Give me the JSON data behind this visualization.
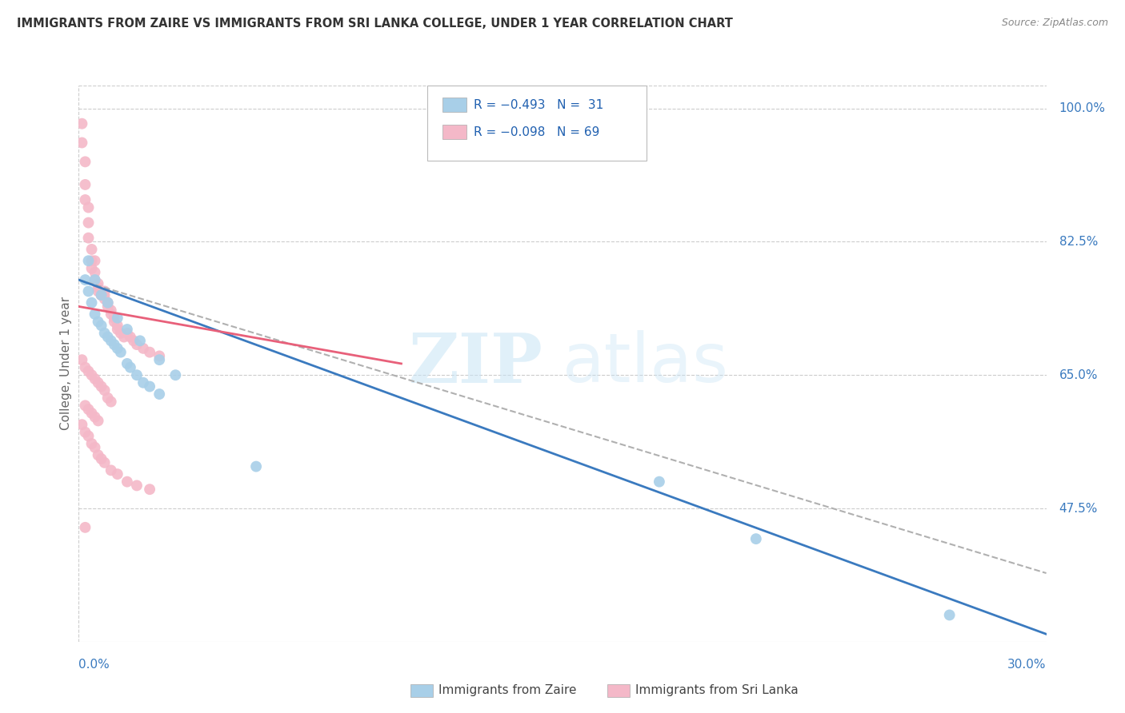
{
  "title": "IMMIGRANTS FROM ZAIRE VS IMMIGRANTS FROM SRI LANKA COLLEGE, UNDER 1 YEAR CORRELATION CHART",
  "source": "Source: ZipAtlas.com",
  "ylabel": "College, Under 1 year",
  "right_yticks": [
    "100.0%",
    "82.5%",
    "65.0%",
    "47.5%"
  ],
  "right_ytick_vals": [
    1.0,
    0.825,
    0.65,
    0.475
  ],
  "bottom_right_label": "30.0%",
  "xmin": 0.0,
  "xmax": 0.3,
  "ymin": 0.3,
  "ymax": 1.03,
  "zaire_color": "#a8cfe8",
  "srilanka_color": "#f4b8c8",
  "zaire_line_color": "#3a7abf",
  "srilanka_line_color": "#e8607a",
  "trendline_dashed_color": "#b0b0b0",
  "legend_color": "#2060b0",
  "zaire_scatter_x": [
    0.002,
    0.003,
    0.004,
    0.005,
    0.006,
    0.007,
    0.008,
    0.009,
    0.01,
    0.011,
    0.012,
    0.013,
    0.015,
    0.016,
    0.018,
    0.02,
    0.022,
    0.025,
    0.003,
    0.005,
    0.007,
    0.009,
    0.012,
    0.015,
    0.019,
    0.025,
    0.03,
    0.055,
    0.21,
    0.27,
    0.18
  ],
  "zaire_scatter_y": [
    0.775,
    0.76,
    0.745,
    0.73,
    0.72,
    0.715,
    0.705,
    0.7,
    0.695,
    0.69,
    0.685,
    0.68,
    0.665,
    0.66,
    0.65,
    0.64,
    0.635,
    0.625,
    0.8,
    0.775,
    0.755,
    0.745,
    0.725,
    0.71,
    0.695,
    0.67,
    0.65,
    0.53,
    0.435,
    0.335,
    0.51
  ],
  "srilanka_scatter_x": [
    0.001,
    0.001,
    0.002,
    0.002,
    0.002,
    0.003,
    0.003,
    0.003,
    0.004,
    0.004,
    0.004,
    0.005,
    0.005,
    0.005,
    0.006,
    0.006,
    0.006,
    0.007,
    0.007,
    0.007,
    0.008,
    0.008,
    0.008,
    0.009,
    0.009,
    0.01,
    0.01,
    0.011,
    0.011,
    0.012,
    0.012,
    0.013,
    0.014,
    0.015,
    0.016,
    0.017,
    0.018,
    0.02,
    0.022,
    0.025,
    0.001,
    0.002,
    0.003,
    0.004,
    0.005,
    0.006,
    0.007,
    0.008,
    0.009,
    0.01,
    0.002,
    0.003,
    0.004,
    0.005,
    0.006,
    0.001,
    0.002,
    0.003,
    0.004,
    0.005,
    0.006,
    0.007,
    0.008,
    0.01,
    0.012,
    0.015,
    0.018,
    0.022,
    0.002
  ],
  "srilanka_scatter_y": [
    0.98,
    0.955,
    0.93,
    0.9,
    0.88,
    0.87,
    0.85,
    0.83,
    0.815,
    0.8,
    0.79,
    0.8,
    0.785,
    0.775,
    0.77,
    0.765,
    0.76,
    0.76,
    0.755,
    0.755,
    0.755,
    0.76,
    0.75,
    0.745,
    0.74,
    0.735,
    0.73,
    0.725,
    0.72,
    0.715,
    0.71,
    0.705,
    0.7,
    0.705,
    0.7,
    0.695,
    0.69,
    0.685,
    0.68,
    0.675,
    0.67,
    0.66,
    0.655,
    0.65,
    0.645,
    0.64,
    0.635,
    0.63,
    0.62,
    0.615,
    0.61,
    0.605,
    0.6,
    0.595,
    0.59,
    0.585,
    0.575,
    0.57,
    0.56,
    0.555,
    0.545,
    0.54,
    0.535,
    0.525,
    0.52,
    0.51,
    0.505,
    0.5,
    0.45
  ],
  "zaire_line_x0": 0.0,
  "zaire_line_y0": 0.775,
  "zaire_line_x1": 0.3,
  "zaire_line_y1": 0.31,
  "srilanka_line_x0": 0.0,
  "srilanka_line_y0": 0.74,
  "srilanka_line_x1": 0.1,
  "srilanka_line_y1": 0.665,
  "dashed_line_x0": 0.0,
  "dashed_line_y0": 0.775,
  "dashed_line_x1": 0.3,
  "dashed_line_y1": 0.39
}
